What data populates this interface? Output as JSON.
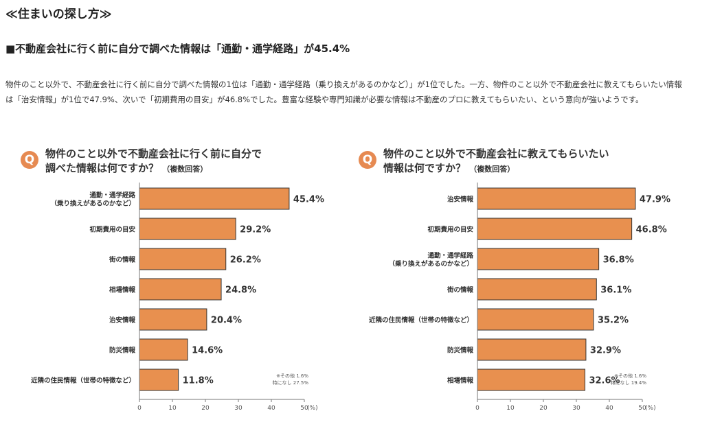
{
  "section_title": "≪住まいの探し方≫",
  "headline": "■不動産会社に行く前に自分で調べた情報は「通勤・通学経路」が45.4%",
  "body_text": "物件のこと以外で、不動産会社に行く前に自分で調べた情報の1位は「通勤・通学経路（乗り換えがあるのかなど）」が1位でした。一方、物件のこと以外で不動産会社に教えてもらいたい情報は「治安情報」が1位で47.9%、次いで「初期費用の目安」が46.8%でした。豊富な経験や専門知識が必要な情報は不動産のプロに教えてもらいたい、という意向が強いようです。",
  "q_badge": "Q",
  "colors": {
    "bar": "#e8904f",
    "badge": "#e68a52"
  },
  "chart_data": [
    {
      "type": "bar",
      "orientation": "horizontal",
      "title_line1": "物件のこと以外で不動産会社に行く前に自分で",
      "title_line2": "調べた情報は何ですか？",
      "title_note": "（複数回答）",
      "categories": [
        [
          "通勤・通学経路",
          "（乗り換えがあるのかなど）"
        ],
        [
          "初期費用の目安"
        ],
        [
          "街の情報"
        ],
        [
          "相場情報"
        ],
        [
          "治安情報"
        ],
        [
          "防災情報"
        ],
        [
          "近隣の住民情報（世帯の特徴など）"
        ]
      ],
      "values": [
        45.4,
        29.2,
        26.2,
        24.8,
        20.4,
        14.6,
        11.8
      ],
      "value_labels": [
        "45.4%",
        "29.2%",
        "26.2%",
        "24.8%",
        "20.4%",
        "14.6%",
        "11.8%"
      ],
      "xlim": [
        0,
        50
      ],
      "ticks": [
        0,
        10,
        20,
        30,
        40,
        50
      ],
      "tick_unit": "(%)",
      "notes": [
        "※その他 1.6%",
        "特になし 27.5%"
      ]
    },
    {
      "type": "bar",
      "orientation": "horizontal",
      "title_line1": "物件のこと以外で不動産会社に教えてもらいたい",
      "title_line2": "情報は何ですか？",
      "title_note": "（複数回答）",
      "categories": [
        [
          "治安情報"
        ],
        [
          "初期費用の目安"
        ],
        [
          "通勤・通学経路",
          "（乗り換えがあるのかなど）"
        ],
        [
          "街の情報"
        ],
        [
          "近隣の住民情報（世帯の特徴など）"
        ],
        [
          "防災情報"
        ],
        [
          "相場情報"
        ]
      ],
      "values": [
        47.9,
        46.8,
        36.8,
        36.1,
        35.2,
        32.9,
        32.6
      ],
      "value_labels": [
        "47.9%",
        "46.8%",
        "36.8%",
        "36.1%",
        "35.2%",
        "32.9%",
        "32.6%"
      ],
      "xlim": [
        0,
        50
      ],
      "ticks": [
        0,
        10,
        20,
        30,
        40,
        50
      ],
      "tick_unit": "(%)",
      "notes": [
        "※その他 1.6%",
        "特になし 19.4%"
      ]
    }
  ]
}
